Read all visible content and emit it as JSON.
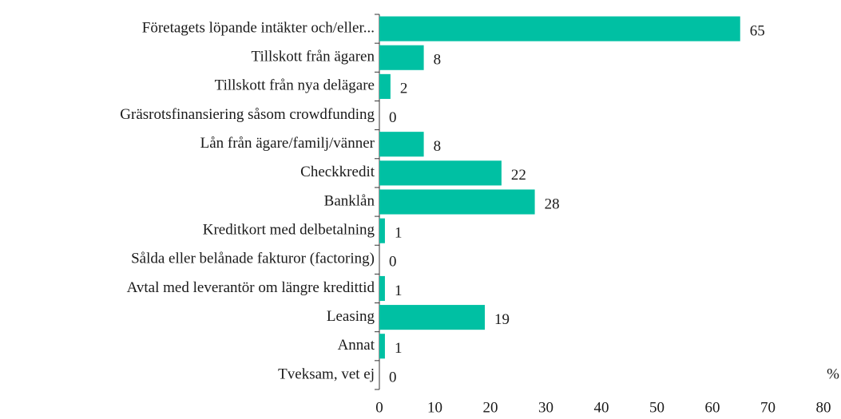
{
  "chart_data": {
    "type": "bar",
    "orientation": "horizontal",
    "categories": [
      "Företagets löpande intäkter och/eller...",
      "Tillskott från ägaren",
      "Tillskott från nya delägare",
      "Gräsrotsfinansiering såsom crowdfunding",
      "Lån från ägare/familj/vänner",
      "Checkkredit",
      "Banklån",
      "Kreditkort med delbetalning",
      "Sålda eller belånade fakturor (factoring)",
      "Avtal med leverantör om längre kredittid",
      "Leasing",
      "Annat",
      "Tveksam, vet ej"
    ],
    "values": [
      65,
      8,
      2,
      0,
      8,
      22,
      28,
      1,
      0,
      1,
      19,
      1,
      0
    ],
    "color": "#00c0a3",
    "xlabel": "%",
    "xlim": [
      0,
      80
    ],
    "xticks": [
      0,
      10,
      20,
      30,
      40,
      50,
      60,
      70,
      80
    ]
  }
}
